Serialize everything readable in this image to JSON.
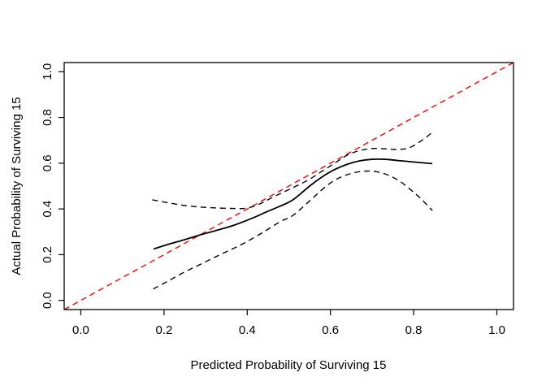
{
  "figure": {
    "background": "#ffffff",
    "frame_color": "#000000",
    "text_color": "#000000"
  },
  "chart_data": {
    "type": "line",
    "title": "",
    "xlabel": "Predicted Probability of Surviving 15",
    "ylabel": "Actual Probability of Surviving 15",
    "xlim": [
      -0.04,
      1.04
    ],
    "ylim": [
      -0.04,
      1.04
    ],
    "grid": false,
    "legend_position": "none",
    "x_ticks": [
      {
        "value": 0.0,
        "label": "0.0"
      },
      {
        "value": 0.2,
        "label": "0.2"
      },
      {
        "value": 0.4,
        "label": "0.4"
      },
      {
        "value": 0.6,
        "label": "0.6"
      },
      {
        "value": 0.8,
        "label": "0.8"
      },
      {
        "value": 1.0,
        "label": "1.0"
      }
    ],
    "y_ticks": [
      {
        "value": 0.0,
        "label": "0.0"
      },
      {
        "value": 0.2,
        "label": "0.2"
      },
      {
        "value": 0.4,
        "label": "0.4"
      },
      {
        "value": 0.6,
        "label": "0.6"
      },
      {
        "value": 0.8,
        "label": "0.8"
      },
      {
        "value": 1.0,
        "label": "1.0"
      }
    ],
    "series": [
      {
        "name": "ideal-diagonal",
        "style": "dashed",
        "color": "#ff0000",
        "x": [
          -0.04,
          1.04
        ],
        "y": [
          -0.04,
          1.04
        ]
      },
      {
        "name": "calibration-curve",
        "style": "solid",
        "color": "#000000",
        "x": [
          0.175,
          0.21,
          0.25,
          0.29,
          0.33,
          0.37,
          0.41,
          0.45,
          0.48,
          0.51,
          0.55,
          0.58,
          0.61,
          0.64,
          0.67,
          0.7,
          0.73,
          0.76,
          0.79,
          0.82,
          0.845
        ],
        "y": [
          0.225,
          0.245,
          0.266,
          0.288,
          0.308,
          0.33,
          0.358,
          0.39,
          0.413,
          0.44,
          0.5,
          0.54,
          0.572,
          0.595,
          0.61,
          0.617,
          0.617,
          0.612,
          0.607,
          0.602,
          0.598
        ]
      },
      {
        "name": "upper-confidence-band",
        "style": "dashed",
        "color": "#000000",
        "x": [
          0.172,
          0.21,
          0.25,
          0.29,
          0.33,
          0.37,
          0.4,
          0.43,
          0.46,
          0.49,
          0.52,
          0.55,
          0.58,
          0.61,
          0.64,
          0.67,
          0.7,
          0.73,
          0.76,
          0.79,
          0.82,
          0.845
        ],
        "y": [
          0.44,
          0.427,
          0.415,
          0.408,
          0.404,
          0.402,
          0.404,
          0.422,
          0.45,
          0.476,
          0.502,
          0.53,
          0.565,
          0.6,
          0.635,
          0.655,
          0.664,
          0.663,
          0.66,
          0.668,
          0.7,
          0.735
        ]
      },
      {
        "name": "lower-confidence-band",
        "style": "dashed",
        "color": "#000000",
        "x": [
          0.174,
          0.21,
          0.25,
          0.29,
          0.33,
          0.37,
          0.4,
          0.44,
          0.48,
          0.51,
          0.55,
          0.59,
          0.62,
          0.65,
          0.68,
          0.71,
          0.74,
          0.77,
          0.8,
          0.82,
          0.845
        ],
        "y": [
          0.05,
          0.085,
          0.125,
          0.16,
          0.196,
          0.23,
          0.258,
          0.3,
          0.345,
          0.372,
          0.435,
          0.5,
          0.535,
          0.555,
          0.565,
          0.563,
          0.547,
          0.517,
          0.473,
          0.44,
          0.393
        ]
      }
    ]
  }
}
